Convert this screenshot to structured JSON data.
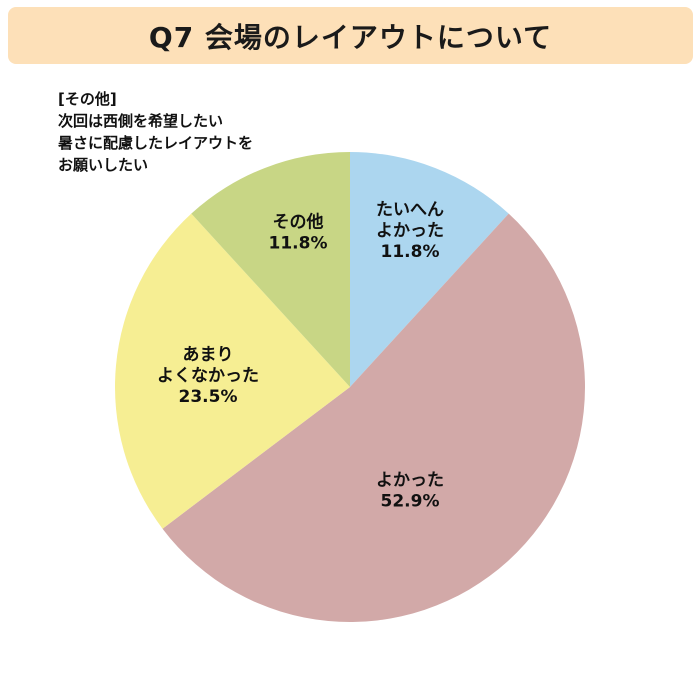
{
  "title": "Q7 会場のレイアウトについて",
  "note_lines": [
    "[その他]",
    "次回は西側を希望したい",
    "暑さに配慮したレイアウトを",
    "お願いしたい"
  ],
  "colors": {
    "banner": "#fde0b8"
  },
  "chart_data": {
    "type": "pie",
    "start_angle_deg": 0,
    "direction": "clockwise",
    "slices": [
      {
        "label_lines": [
          "たいへん",
          "よかった"
        ],
        "percent_text": "11.8%",
        "value": 11.8,
        "color": "#acd6ef"
      },
      {
        "label_lines": [
          "よかった"
        ],
        "percent_text": "52.9%",
        "value": 52.9,
        "color": "#d2a9a8"
      },
      {
        "label_lines": [
          "あまり",
          "よくなかった"
        ],
        "percent_text": "23.5%",
        "value": 23.5,
        "color": "#f6ee93"
      },
      {
        "label_lines": [
          "その他"
        ],
        "percent_text": "11.8%",
        "value": 11.8,
        "color": "#c8d685"
      }
    ]
  }
}
